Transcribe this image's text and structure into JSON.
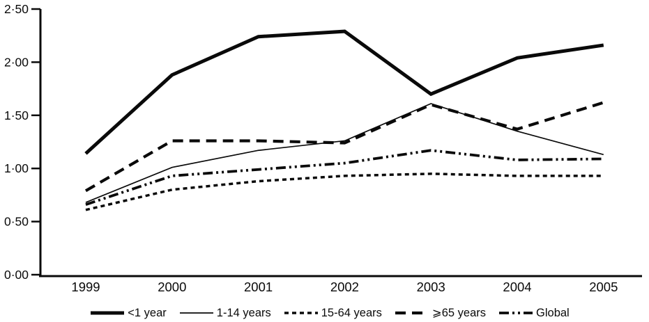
{
  "colors": {
    "line": "#0a0a0a",
    "background": "#ffffff"
  },
  "chart_data": {
    "type": "line",
    "title": "",
    "xlabel": "",
    "ylabel": "",
    "grid": false,
    "legend_position": "bottom",
    "ylim": [
      0,
      2.5
    ],
    "categories": [
      "1999",
      "2000",
      "2001",
      "2002",
      "2003",
      "2004",
      "2005"
    ],
    "y_ticks": [
      0,
      0.5,
      1.0,
      1.5,
      2.0,
      2.5
    ],
    "y_tick_labels": [
      "0·00",
      "0·50",
      "1·00",
      "1·50",
      "2·00",
      "2·50"
    ],
    "series": [
      {
        "name": "<1 year",
        "style": "solid-thick",
        "values": [
          1.14,
          1.88,
          2.24,
          2.29,
          1.7,
          2.04,
          2.16
        ]
      },
      {
        "name": "1-14 years",
        "style": "solid-thin",
        "values": [
          0.68,
          1.01,
          1.17,
          1.26,
          1.61,
          1.35,
          1.13
        ]
      },
      {
        "name": "15-64 years",
        "style": "dash-short",
        "values": [
          0.61,
          0.8,
          0.88,
          0.93,
          0.95,
          0.93,
          0.93
        ]
      },
      {
        "name": "⩾65 years",
        "style": "dash-long",
        "values": [
          0.79,
          1.26,
          1.26,
          1.24,
          1.6,
          1.37,
          1.62
        ]
      },
      {
        "name": "Global",
        "style": "dash-dot-dot",
        "values": [
          0.66,
          0.93,
          0.99,
          1.05,
          1.17,
          1.08,
          1.09
        ]
      }
    ]
  }
}
